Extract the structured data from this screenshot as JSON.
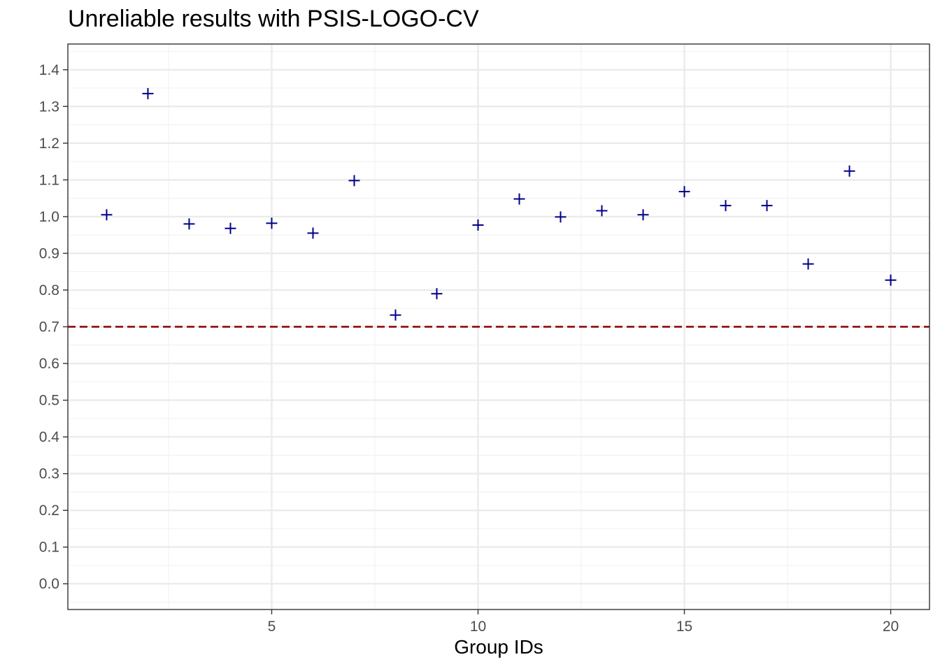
{
  "chart_data": {
    "type": "scatter",
    "title": "Unreliable results with PSIS-LOGO-CV",
    "subtitle": "",
    "xlabel": "Group IDs",
    "ylabel": "",
    "x": [
      1,
      2,
      3,
      4,
      5,
      6,
      7,
      8,
      9,
      10,
      11,
      12,
      13,
      14,
      15,
      16,
      17,
      18,
      19,
      20
    ],
    "y": [
      1.005,
      1.335,
      0.98,
      0.968,
      0.982,
      0.955,
      1.098,
      0.732,
      0.79,
      0.977,
      1.048,
      0.999,
      1.016,
      1.005,
      1.068,
      1.03,
      1.03,
      0.871,
      1.124,
      0.827
    ],
    "xlim": [
      0.06,
      20.94
    ],
    "ylim": [
      -0.07,
      1.47
    ],
    "x_ticks": [
      5,
      10,
      15,
      20
    ],
    "x_tick_labels": [
      "5",
      "10",
      "15",
      "20"
    ],
    "y_ticks": [
      0.0,
      0.1,
      0.2,
      0.3,
      0.4,
      0.5,
      0.6,
      0.7,
      0.8,
      0.9,
      1.0,
      1.1,
      1.2,
      1.3,
      1.4
    ],
    "y_tick_labels": [
      "0.0",
      "0.1",
      "0.2",
      "0.3",
      "0.4",
      "0.5",
      "0.6",
      "0.7",
      "0.8",
      "0.9",
      "1.0",
      "1.1",
      "1.2",
      "1.3",
      "1.4"
    ],
    "reference_line": {
      "y": 0.7,
      "style": "dashed",
      "color": "#8B0000"
    },
    "marker": "cross",
    "point_color": "#00008B",
    "grid": true,
    "theme": "bw"
  }
}
